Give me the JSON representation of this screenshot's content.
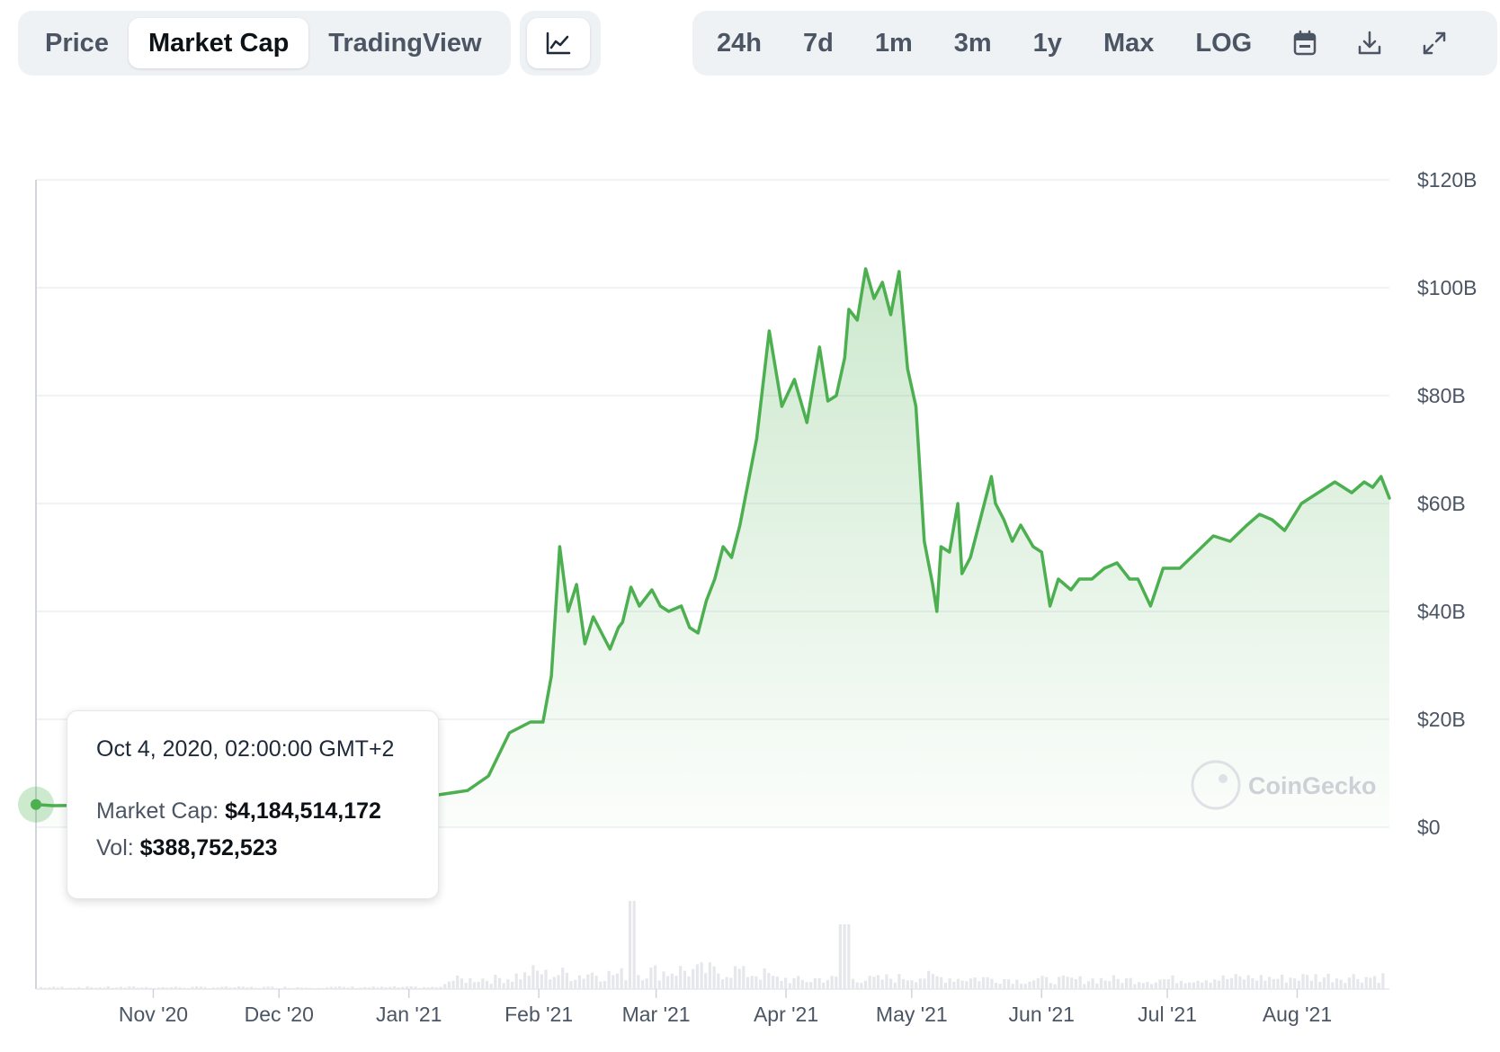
{
  "tabs": [
    {
      "label": "Price",
      "active": false
    },
    {
      "label": "Market Cap",
      "active": true
    },
    {
      "label": "TradingView",
      "active": false
    }
  ],
  "chart_type_icon": "line-chart-icon",
  "ranges": [
    "24h",
    "7d",
    "1m",
    "3m",
    "1y",
    "Max",
    "LOG"
  ],
  "tool_icons": [
    "calendar-icon",
    "download-icon",
    "fullscreen-icon"
  ],
  "colors": {
    "line": "#4caf50",
    "fill": "#4caf50",
    "volume": "#e5e7eb",
    "grid": "#eceff2"
  },
  "tooltip": {
    "date": "Oct 4, 2020, 02:00:00 GMT+2",
    "market_cap_label": "Market Cap:",
    "market_cap_value": "$4,184,514,172",
    "vol_label": "Vol:",
    "vol_value": "$388,752,523"
  },
  "watermark": "CoinGecko",
  "chart_data": {
    "type": "area",
    "title": "",
    "xlabel": "",
    "ylabel": "",
    "x_ticks": [
      "Nov '20",
      "Dec '20",
      "Jan '21",
      "Feb '21",
      "Mar '21",
      "Apr '21",
      "May '21",
      "Jun '21",
      "Jul '21",
      "Aug '21"
    ],
    "y_ticks": [
      "$120B",
      "$100B",
      "$80B",
      "$60B",
      "$40B",
      "$20B",
      "$0"
    ],
    "ylim": [
      0,
      120
    ],
    "y_unit": "billions USD",
    "grid": true,
    "series": [
      {
        "x": [
          "2020-10-04",
          "2020-10-08",
          "2020-12-15",
          "2021-01-01",
          "2021-01-08",
          "2021-01-15",
          "2021-01-20",
          "2021-01-25",
          "2021-01-30",
          "2021-02-02",
          "2021-02-04",
          "2021-02-06",
          "2021-02-08",
          "2021-02-10",
          "2021-02-12",
          "2021-02-14",
          "2021-02-16",
          "2021-02-18",
          "2021-02-20",
          "2021-02-21",
          "2021-02-23",
          "2021-02-25",
          "2021-02-28",
          "2021-03-02",
          "2021-03-04",
          "2021-03-07",
          "2021-03-09",
          "2021-03-11",
          "2021-03-13",
          "2021-03-15",
          "2021-03-17",
          "2021-03-19",
          "2021-03-21",
          "2021-03-25",
          "2021-03-28",
          "2021-03-31",
          "2021-04-03",
          "2021-04-06",
          "2021-04-09",
          "2021-04-11",
          "2021-04-13",
          "2021-04-15",
          "2021-04-16",
          "2021-04-18",
          "2021-04-20",
          "2021-04-22",
          "2021-04-24",
          "2021-04-26",
          "2021-04-28",
          "2021-04-30",
          "2021-05-02",
          "2021-05-04",
          "2021-05-06",
          "2021-05-07",
          "2021-05-08",
          "2021-05-10",
          "2021-05-12",
          "2021-05-13",
          "2021-05-15",
          "2021-05-17",
          "2021-05-19",
          "2021-05-20",
          "2021-05-21",
          "2021-05-23",
          "2021-05-25",
          "2021-05-27",
          "2021-05-30",
          "2021-06-01",
          "2021-06-03",
          "2021-06-05",
          "2021-06-08",
          "2021-06-10",
          "2021-06-13",
          "2021-06-16",
          "2021-06-19",
          "2021-06-22",
          "2021-06-24",
          "2021-06-27",
          "2021-06-30",
          "2021-07-04",
          "2021-07-08",
          "2021-07-12",
          "2021-07-16",
          "2021-07-20",
          "2021-07-23",
          "2021-07-26",
          "2021-07-29",
          "2021-08-02",
          "2021-08-06",
          "2021-08-10",
          "2021-08-14",
          "2021-08-17",
          "2021-08-19",
          "2021-08-21",
          "2021-08-23"
        ],
        "y": [
          4.2,
          4.0,
          4.5,
          6.3,
          6.0,
          6.8,
          9.5,
          17.5,
          19.5,
          19.5,
          28,
          52,
          40,
          45,
          34,
          39,
          36,
          33,
          37,
          38,
          44.5,
          41,
          44,
          41,
          40,
          41,
          37,
          36,
          42,
          46,
          52,
          50,
          56,
          72,
          92,
          78,
          83,
          75,
          89,
          79,
          80,
          87,
          96,
          94,
          103.5,
          98,
          101,
          95,
          103,
          85,
          78,
          53,
          45,
          40,
          52,
          51,
          60,
          47,
          50,
          56,
          62,
          65,
          60,
          57,
          53,
          56,
          52,
          51,
          41,
          46,
          44,
          46,
          46,
          48,
          49,
          46,
          46,
          41,
          48,
          48,
          51,
          54,
          53,
          56,
          58,
          57,
          55,
          60,
          62,
          64,
          62,
          64,
          63,
          65,
          61
        ]
      }
    ],
    "volume_note": "volume bars shown along bottom"
  }
}
